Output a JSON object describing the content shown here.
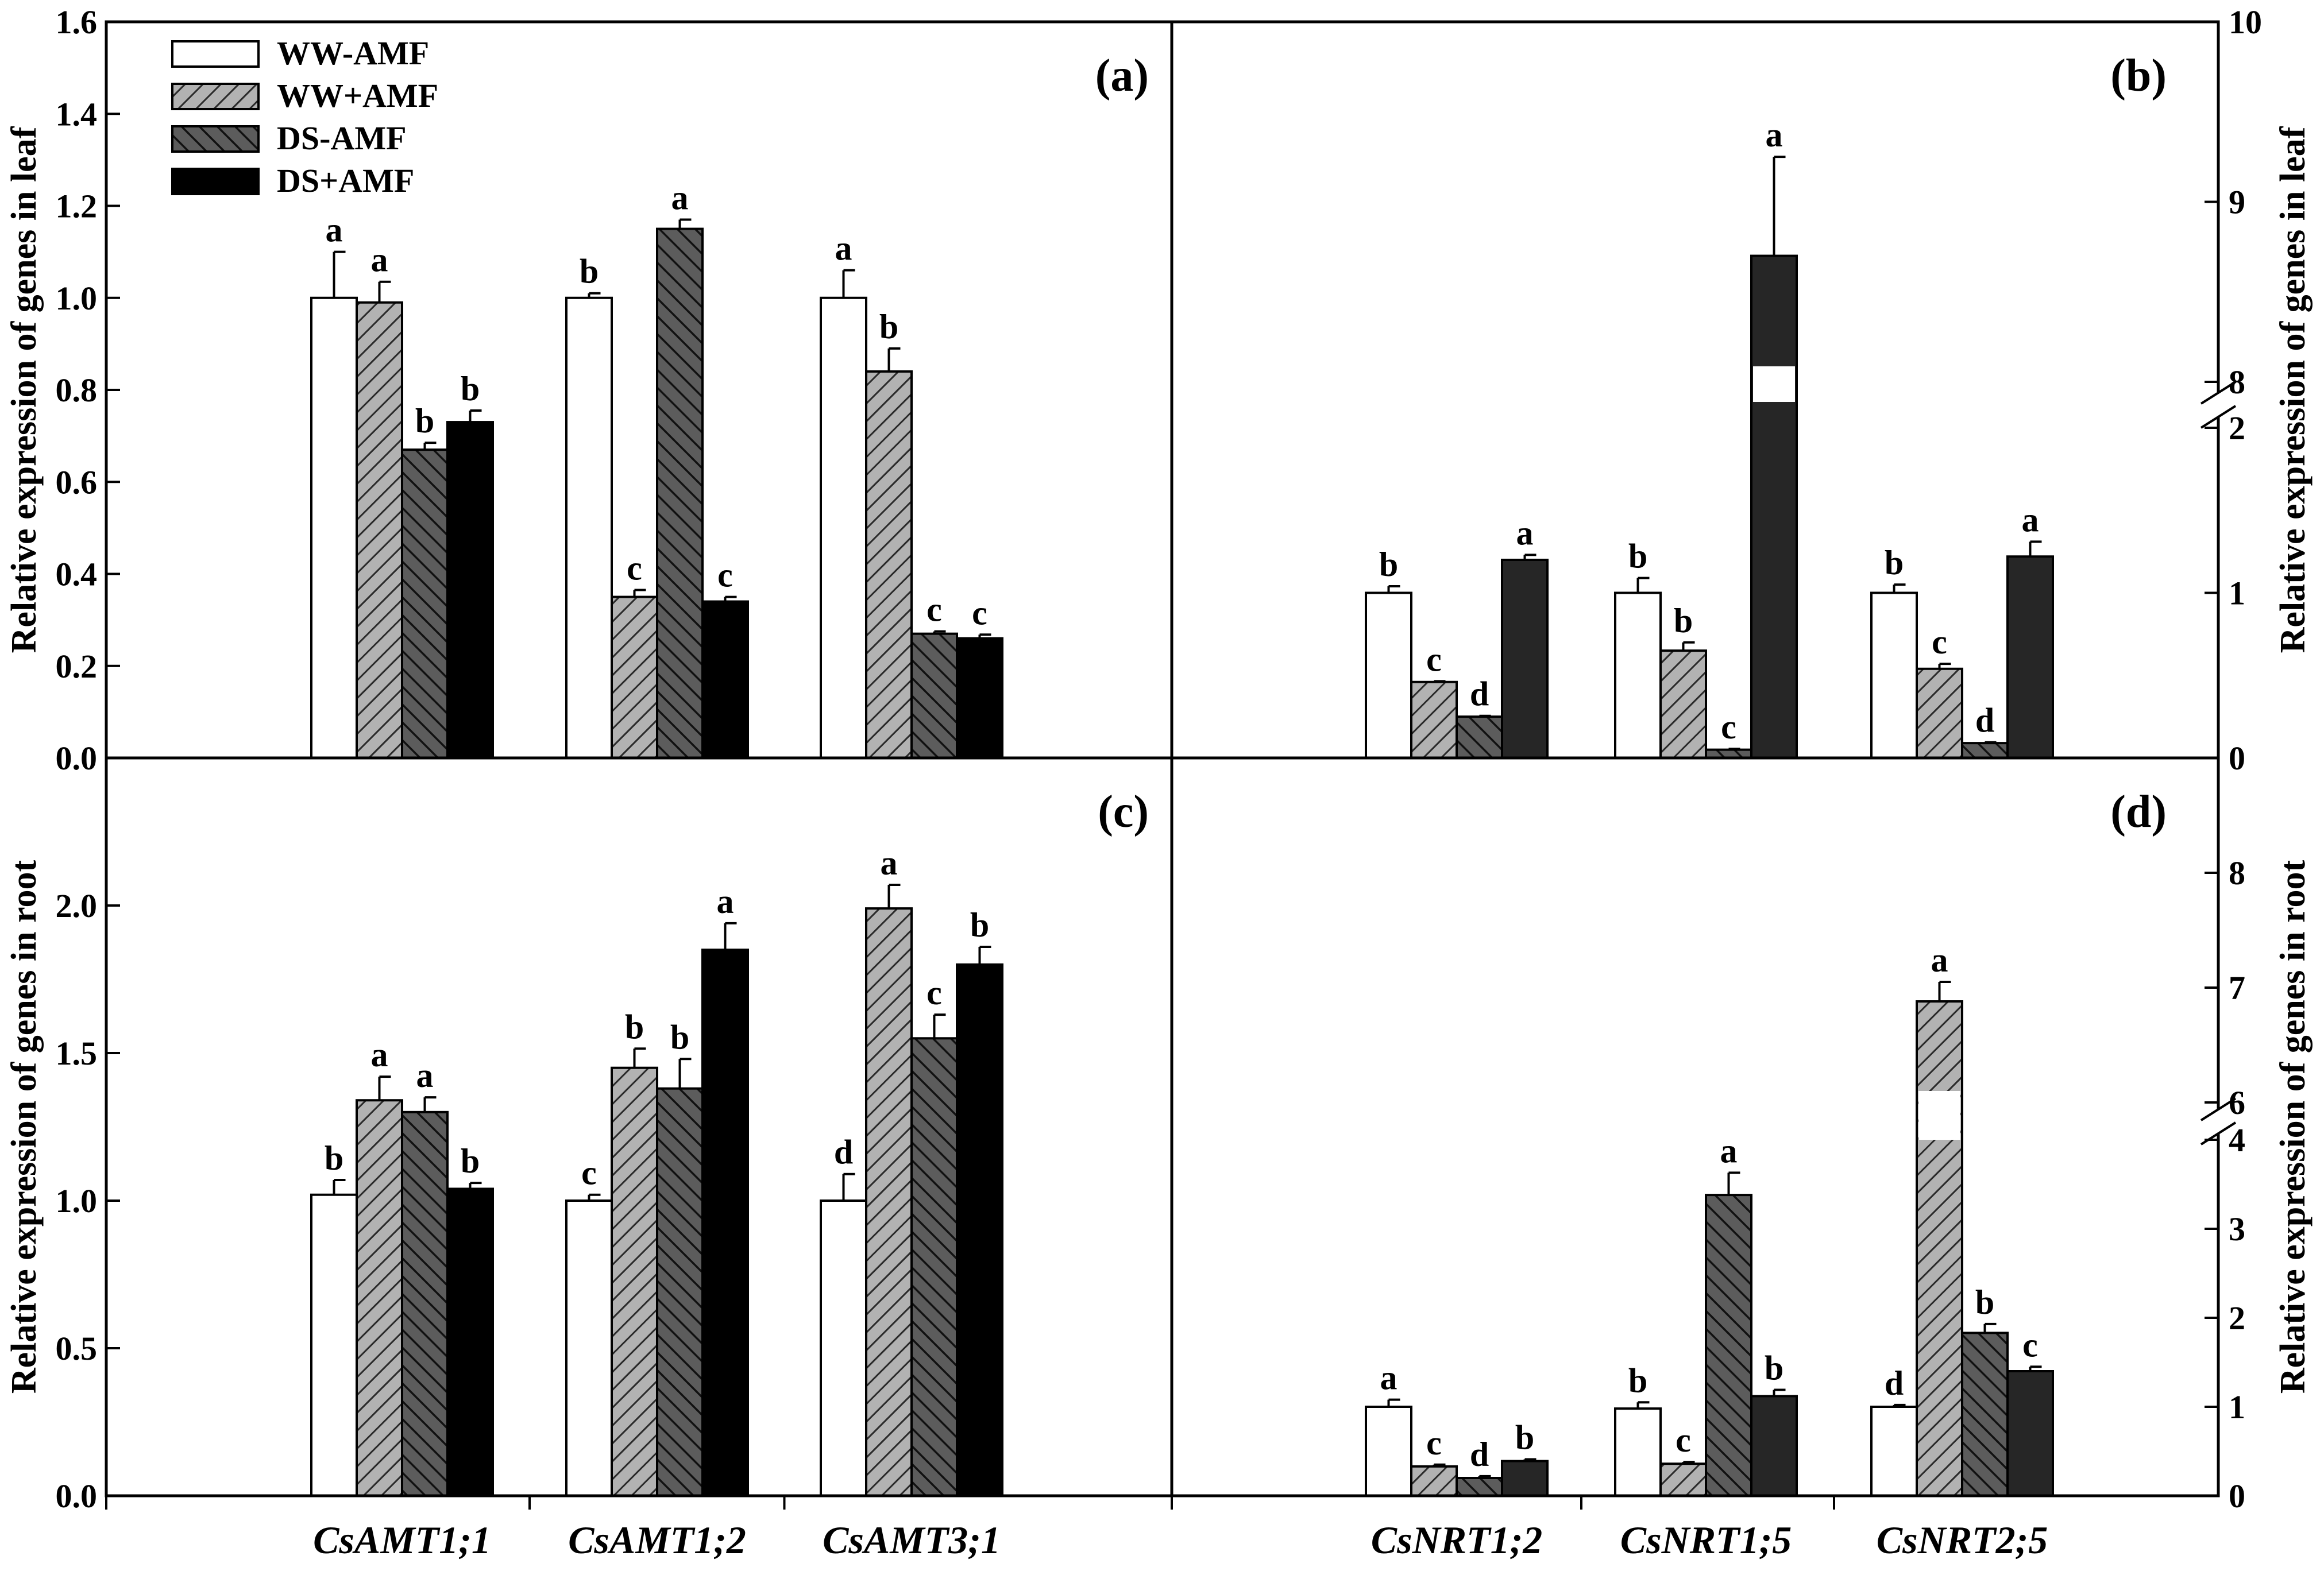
{
  "colors": {
    "WW-AMF": "#ffffff",
    "WW+AMF": "#b2b2b2",
    "DS-AMF": "#5c5c5c",
    "DS+AMF": "#000000",
    "DS+AMF_right": "#262626",
    "axis": "#000000"
  },
  "legend": [
    {
      "name": "WW-AMF",
      "pattern": "none"
    },
    {
      "name": "WW+AMF",
      "pattern": "hatch-up"
    },
    {
      "name": "DS-AMF",
      "pattern": "hatch-down"
    },
    {
      "name": "DS+AMF",
      "pattern": "solid"
    }
  ],
  "chart_data": [
    {
      "panel": "(a)",
      "type": "bar",
      "ylabel": "Relative expression of genes in leaf",
      "ylim": [
        0,
        1.6
      ],
      "yticks": [
        "0.0",
        "0.2",
        "0.4",
        "0.6",
        "0.8",
        "1.0",
        "1.2",
        "1.4",
        "1.6"
      ],
      "categories": [
        "CsAMT1;1",
        "CsAMT1;2",
        "CsAMT3;1"
      ],
      "series": [
        {
          "name": "WW-AMF",
          "values": [
            1.0,
            1.0,
            1.0
          ],
          "errors": [
            0.1,
            0.01,
            0.06
          ],
          "letters": [
            "a",
            "b",
            "a"
          ]
        },
        {
          "name": "WW+AMF",
          "values": [
            0.99,
            0.35,
            0.84
          ],
          "errors": [
            0.045,
            0.015,
            0.05
          ],
          "letters": [
            "a",
            "c",
            "b"
          ]
        },
        {
          "name": "DS-AMF",
          "values": [
            0.67,
            1.15,
            0.27
          ],
          "errors": [
            0.015,
            0.02,
            0.005
          ],
          "letters": [
            "b",
            "a",
            "c"
          ]
        },
        {
          "name": "DS+AMF",
          "values": [
            0.73,
            0.34,
            0.26
          ],
          "errors": [
            0.025,
            0.01,
            0.008
          ],
          "letters": [
            "b",
            "c",
            "c"
          ]
        }
      ]
    },
    {
      "panel": "(b)",
      "type": "bar",
      "ylabel": "Relative expression of genes in leaf",
      "axis_break": {
        "lower": [
          0,
          2
        ],
        "upper": [
          8,
          10
        ]
      },
      "yticks_lower": [
        "0",
        "1",
        "2"
      ],
      "yticks_upper": [
        "8",
        "9",
        "10"
      ],
      "categories": [
        "CsNRT1;2",
        "CsNRT1;5",
        "CsNRT2;5"
      ],
      "series": [
        {
          "name": "WW-AMF",
          "values": [
            1.0,
            1.0,
            1.0
          ],
          "errors": [
            0.04,
            0.09,
            0.05
          ],
          "letters": [
            "b",
            "b",
            "b"
          ]
        },
        {
          "name": "WW+AMF",
          "values": [
            0.46,
            0.65,
            0.54
          ],
          "errors": [
            0.005,
            0.05,
            0.03
          ],
          "letters": [
            "c",
            "b",
            "c"
          ]
        },
        {
          "name": "DS-AMF",
          "values": [
            0.25,
            0.05,
            0.09
          ],
          "errors": [
            0.005,
            0.005,
            0.005
          ],
          "letters": [
            "d",
            "c",
            "d"
          ]
        },
        {
          "name": "DS+AMF",
          "values": [
            1.2,
            8.7,
            1.22
          ],
          "errors": [
            0.03,
            0.55,
            0.09
          ],
          "letters": [
            "a",
            "a",
            "a"
          ]
        }
      ]
    },
    {
      "panel": "(c)",
      "type": "bar",
      "ylabel": "Relative expression of genes in root",
      "ylim": [
        0,
        2.5
      ],
      "yticks": [
        "0.0",
        "0.5",
        "1.0",
        "1.5",
        "2.0"
      ],
      "categories": [
        "CsAMT1;1",
        "CsAMT1;2",
        "CsAMT3;1"
      ],
      "series": [
        {
          "name": "WW-AMF",
          "values": [
            1.02,
            1.0,
            1.0
          ],
          "errors": [
            0.05,
            0.02,
            0.09
          ],
          "letters": [
            "b",
            "c",
            "d"
          ]
        },
        {
          "name": "WW+AMF",
          "values": [
            1.34,
            1.45,
            1.99
          ],
          "errors": [
            0.08,
            0.065,
            0.08
          ],
          "letters": [
            "a",
            "b",
            "a"
          ]
        },
        {
          "name": "DS-AMF",
          "values": [
            1.3,
            1.38,
            1.55
          ],
          "errors": [
            0.05,
            0.1,
            0.08
          ],
          "letters": [
            "a",
            "b",
            "c"
          ]
        },
        {
          "name": "DS+AMF",
          "values": [
            1.04,
            1.85,
            1.8
          ],
          "errors": [
            0.02,
            0.09,
            0.06
          ],
          "letters": [
            "b",
            "a",
            "b"
          ]
        }
      ]
    },
    {
      "panel": "(d)",
      "type": "bar",
      "ylabel": "Relative expression of genes in root",
      "axis_break": {
        "lower": [
          0,
          4
        ],
        "upper": [
          6,
          9
        ]
      },
      "yticks_lower": [
        "0",
        "1",
        "2",
        "3",
        "4"
      ],
      "yticks_upper": [
        "6",
        "7",
        "8"
      ],
      "categories": [
        "CsNRT1;2",
        "CsNRT1;5",
        "CsNRT2;5"
      ],
      "series": [
        {
          "name": "WW-AMF",
          "values": [
            1.0,
            0.98,
            1.0
          ],
          "errors": [
            0.08,
            0.07,
            0.02
          ],
          "letters": [
            "a",
            "b",
            "d"
          ]
        },
        {
          "name": "WW+AMF",
          "values": [
            0.33,
            0.36,
            6.88
          ],
          "errors": [
            0.02,
            0.02,
            0.17
          ],
          "letters": [
            "c",
            "c",
            "a"
          ]
        },
        {
          "name": "DS-AMF",
          "values": [
            0.2,
            3.38,
            1.83
          ],
          "errors": [
            0.02,
            0.25,
            0.1
          ],
          "letters": [
            "d",
            "a",
            "b"
          ]
        },
        {
          "name": "DS+AMF",
          "values": [
            0.39,
            1.12,
            1.4
          ],
          "errors": [
            0.02,
            0.07,
            0.05
          ],
          "letters": [
            "b",
            "b",
            "c"
          ]
        }
      ]
    }
  ]
}
